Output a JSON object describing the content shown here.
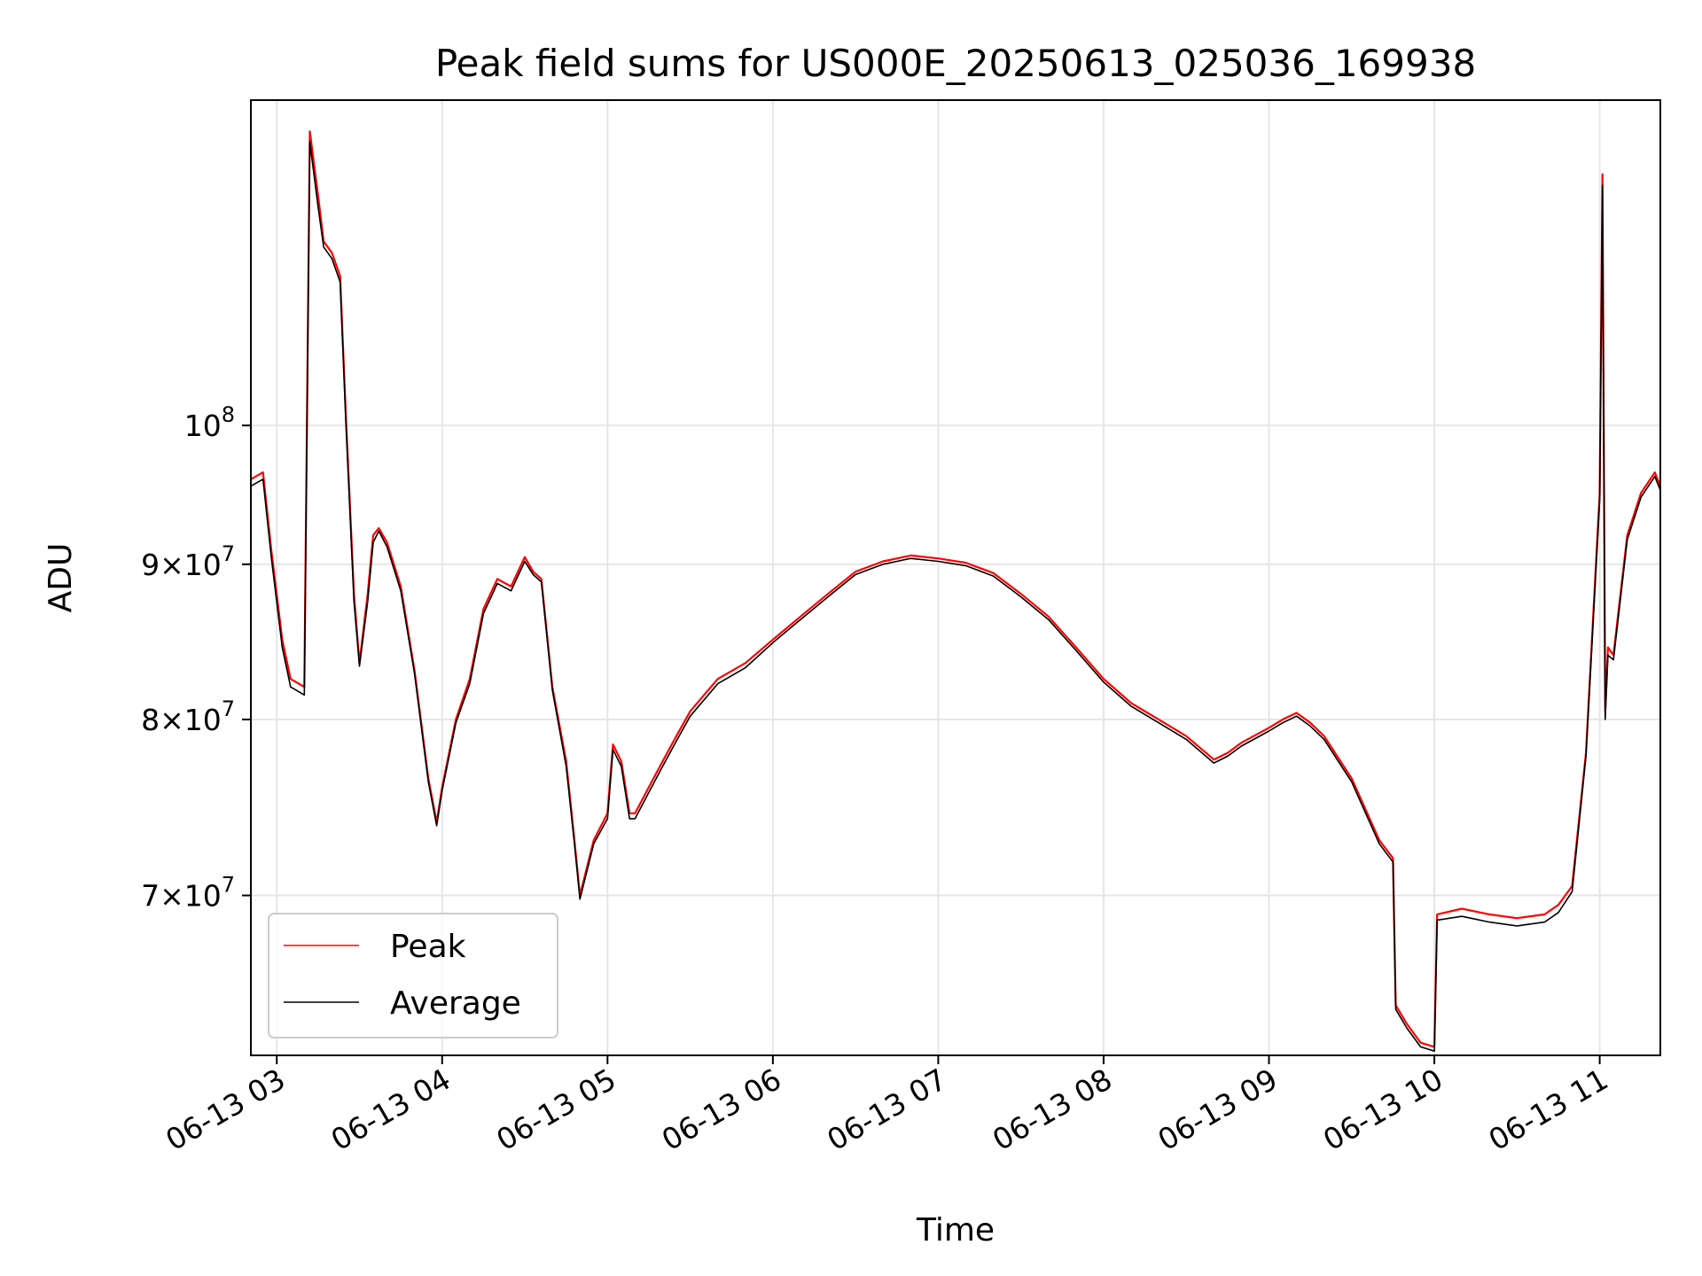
{
  "chart_data": {
    "type": "line",
    "title": "Peak field sums for US000E_20250613_025036_169938",
    "xlabel": "Time",
    "ylabel": "ADU",
    "x_axis": {
      "kind": "time",
      "range": [
        "2025-06-13 02:50:36",
        "2025-06-13 11:22:00"
      ],
      "ticks": [
        {
          "value": "2025-06-13 03:00",
          "label": "06-13 03"
        },
        {
          "value": "2025-06-13 04:00",
          "label": "06-13 04"
        },
        {
          "value": "2025-06-13 05:00",
          "label": "06-13 05"
        },
        {
          "value": "2025-06-13 06:00",
          "label": "06-13 06"
        },
        {
          "value": "2025-06-13 07:00",
          "label": "06-13 07"
        },
        {
          "value": "2025-06-13 08:00",
          "label": "06-13 08"
        },
        {
          "value": "2025-06-13 09:00",
          "label": "06-13 09"
        },
        {
          "value": "2025-06-13 10:00",
          "label": "06-13 10"
        },
        {
          "value": "2025-06-13 11:00",
          "label": "06-13 11"
        }
      ]
    },
    "y_axis": {
      "scale": "log",
      "range": [
        62000000,
        128000000
      ],
      "ticks": [
        {
          "value": 70000000,
          "mant": "7",
          "exp": "7"
        },
        {
          "value": 80000000,
          "mant": "8",
          "exp": "7"
        },
        {
          "value": 90000000,
          "mant": "9",
          "exp": "7"
        },
        {
          "value": 100000000,
          "mant": "",
          "exp": "8"
        }
      ]
    },
    "grid": true,
    "legend": {
      "position": "lower-left",
      "entries": [
        {
          "label": "Peak",
          "color": "#ff0000"
        },
        {
          "label": "Average",
          "color": "#000000"
        }
      ]
    },
    "series": [
      {
        "name": "Peak",
        "color": "#ff0000",
        "x": [
          "2025-06-13 02:50:36",
          "2025-06-13 02:55",
          "2025-06-13 02:58",
          "2025-06-13 03:02",
          "2025-06-13 03:05",
          "2025-06-13 03:10",
          "2025-06-13 03:12",
          "2025-06-13 03:15",
          "2025-06-13 03:17",
          "2025-06-13 03:20",
          "2025-06-13 03:23",
          "2025-06-13 03:25",
          "2025-06-13 03:28",
          "2025-06-13 03:30",
          "2025-06-13 03:33",
          "2025-06-13 03:35",
          "2025-06-13 03:37",
          "2025-06-13 03:40",
          "2025-06-13 03:45",
          "2025-06-13 03:50",
          "2025-06-13 03:55",
          "2025-06-13 03:58",
          "2025-06-13 04:00",
          "2025-06-13 04:05",
          "2025-06-13 04:10",
          "2025-06-13 04:15",
          "2025-06-13 04:20",
          "2025-06-13 04:25",
          "2025-06-13 04:30",
          "2025-06-13 04:33",
          "2025-06-13 04:36",
          "2025-06-13 04:40",
          "2025-06-13 04:45",
          "2025-06-13 04:48",
          "2025-06-13 04:50",
          "2025-06-13 04:55",
          "2025-06-13 05:00",
          "2025-06-13 05:02",
          "2025-06-13 05:05",
          "2025-06-13 05:08",
          "2025-06-13 05:10",
          "2025-06-13 05:15",
          "2025-06-13 05:20",
          "2025-06-13 05:25",
          "2025-06-13 05:30",
          "2025-06-13 05:40",
          "2025-06-13 05:50",
          "2025-06-13 06:00",
          "2025-06-13 06:10",
          "2025-06-13 06:20",
          "2025-06-13 06:30",
          "2025-06-13 06:40",
          "2025-06-13 06:50",
          "2025-06-13 07:00",
          "2025-06-13 07:10",
          "2025-06-13 07:20",
          "2025-06-13 07:30",
          "2025-06-13 07:40",
          "2025-06-13 07:50",
          "2025-06-13 08:00",
          "2025-06-13 08:10",
          "2025-06-13 08:20",
          "2025-06-13 08:30",
          "2025-06-13 08:40",
          "2025-06-13 08:45",
          "2025-06-13 08:50",
          "2025-06-13 09:00",
          "2025-06-13 09:05",
          "2025-06-13 09:10",
          "2025-06-13 09:15",
          "2025-06-13 09:20",
          "2025-06-13 09:30",
          "2025-06-13 09:40",
          "2025-06-13 09:45",
          "2025-06-13 09:46",
          "2025-06-13 09:50",
          "2025-06-13 09:55",
          "2025-06-13 10:00",
          "2025-06-13 10:01",
          "2025-06-13 10:10",
          "2025-06-13 10:20",
          "2025-06-13 10:30",
          "2025-06-13 10:40",
          "2025-06-13 10:45",
          "2025-06-13 10:50",
          "2025-06-13 10:55",
          "2025-06-13 11:00",
          "2025-06-13 11:01",
          "2025-06-13 11:02",
          "2025-06-13 11:03",
          "2025-06-13 11:05",
          "2025-06-13 11:10",
          "2025-06-13 11:15",
          "2025-06-13 11:20",
          "2025-06-13 11:22"
        ],
        "y": [
          96000000,
          96500000,
          91000000,
          85000000,
          82500000,
          82000000,
          125000000,
          119000000,
          115000000,
          114000000,
          112000000,
          101000000,
          88000000,
          83500000,
          88000000,
          92000000,
          92500000,
          91500000,
          88500000,
          83000000,
          76500000,
          74000000,
          76000000,
          80000000,
          82500000,
          87000000,
          89000000,
          88500000,
          90500000,
          89500000,
          89000000,
          82000000,
          77500000,
          73000000,
          70000000,
          73000000,
          74500000,
          78500000,
          77500000,
          74500000,
          74500000,
          76000000,
          77500000,
          79000000,
          80500000,
          82500000,
          83500000,
          85000000,
          86500000,
          88000000,
          89500000,
          90200000,
          90600000,
          90400000,
          90100000,
          89400000,
          88000000,
          86500000,
          84500000,
          82500000,
          81000000,
          80000000,
          79000000,
          77600000,
          78000000,
          78600000,
          79500000,
          80000000,
          80400000,
          79800000,
          79000000,
          76500000,
          73000000,
          72000000,
          64400000,
          63500000,
          62600000,
          62400000,
          69000000,
          69300000,
          69000000,
          68800000,
          69000000,
          69500000,
          70500000,
          78000000,
          95000000,
          121000000,
          80500000,
          84500000,
          84000000,
          92000000,
          95000000,
          96500000,
          95500000
        ]
      },
      {
        "name": "Average",
        "color": "#000000",
        "x": [
          "2025-06-13 02:50:36",
          "2025-06-13 02:55",
          "2025-06-13 02:58",
          "2025-06-13 03:02",
          "2025-06-13 03:05",
          "2025-06-13 03:10",
          "2025-06-13 03:12",
          "2025-06-13 03:15",
          "2025-06-13 03:17",
          "2025-06-13 03:20",
          "2025-06-13 03:23",
          "2025-06-13 03:25",
          "2025-06-13 03:28",
          "2025-06-13 03:30",
          "2025-06-13 03:33",
          "2025-06-13 03:35",
          "2025-06-13 03:37",
          "2025-06-13 03:40",
          "2025-06-13 03:45",
          "2025-06-13 03:50",
          "2025-06-13 03:55",
          "2025-06-13 03:58",
          "2025-06-13 04:00",
          "2025-06-13 04:05",
          "2025-06-13 04:10",
          "2025-06-13 04:15",
          "2025-06-13 04:20",
          "2025-06-13 04:25",
          "2025-06-13 04:30",
          "2025-06-13 04:33",
          "2025-06-13 04:36",
          "2025-06-13 04:40",
          "2025-06-13 04:45",
          "2025-06-13 04:48",
          "2025-06-13 04:50",
          "2025-06-13 04:55",
          "2025-06-13 05:00",
          "2025-06-13 05:02",
          "2025-06-13 05:05",
          "2025-06-13 05:08",
          "2025-06-13 05:10",
          "2025-06-13 05:15",
          "2025-06-13 05:20",
          "2025-06-13 05:25",
          "2025-06-13 05:30",
          "2025-06-13 05:40",
          "2025-06-13 05:50",
          "2025-06-13 06:00",
          "2025-06-13 06:10",
          "2025-06-13 06:20",
          "2025-06-13 06:30",
          "2025-06-13 06:40",
          "2025-06-13 06:50",
          "2025-06-13 07:00",
          "2025-06-13 07:10",
          "2025-06-13 07:20",
          "2025-06-13 07:30",
          "2025-06-13 07:40",
          "2025-06-13 07:50",
          "2025-06-13 08:00",
          "2025-06-13 08:10",
          "2025-06-13 08:20",
          "2025-06-13 08:30",
          "2025-06-13 08:40",
          "2025-06-13 08:45",
          "2025-06-13 08:50",
          "2025-06-13 09:00",
          "2025-06-13 09:05",
          "2025-06-13 09:10",
          "2025-06-13 09:15",
          "2025-06-13 09:20",
          "2025-06-13 09:30",
          "2025-06-13 09:40",
          "2025-06-13 09:45",
          "2025-06-13 09:46",
          "2025-06-13 09:50",
          "2025-06-13 09:55",
          "2025-06-13 10:00",
          "2025-06-13 10:01",
          "2025-06-13 10:10",
          "2025-06-13 10:20",
          "2025-06-13 10:30",
          "2025-06-13 10:40",
          "2025-06-13 10:45",
          "2025-06-13 10:50",
          "2025-06-13 10:55",
          "2025-06-13 11:00",
          "2025-06-13 11:01",
          "2025-06-13 11:02",
          "2025-06-13 11:03",
          "2025-06-13 11:05",
          "2025-06-13 11:10",
          "2025-06-13 11:15",
          "2025-06-13 11:20",
          "2025-06-13 11:22"
        ],
        "y": [
          95500000,
          96000000,
          90500000,
          84500000,
          82000000,
          81500000,
          124000000,
          118000000,
          114500000,
          113500000,
          111500000,
          100500000,
          87500000,
          83300000,
          87500000,
          91500000,
          92300000,
          91200000,
          88200000,
          82800000,
          76300000,
          73800000,
          75800000,
          79800000,
          82200000,
          86700000,
          88700000,
          88200000,
          90200000,
          89300000,
          88800000,
          81800000,
          77200000,
          72800000,
          69800000,
          72800000,
          74200000,
          78200000,
          77200000,
          74200000,
          74200000,
          75700000,
          77200000,
          78700000,
          80200000,
          82200000,
          83200000,
          84800000,
          86300000,
          87800000,
          89300000,
          90000000,
          90400000,
          90200000,
          89900000,
          89200000,
          87800000,
          86300000,
          84300000,
          82300000,
          80800000,
          79800000,
          78800000,
          77400000,
          77800000,
          78400000,
          79300000,
          79800000,
          80200000,
          79600000,
          78800000,
          76300000,
          72800000,
          71800000,
          64200000,
          63300000,
          62400000,
          62200000,
          68700000,
          68900000,
          68600000,
          68400000,
          68600000,
          69100000,
          70200000,
          77800000,
          94500000,
          120000000,
          80000000,
          84000000,
          83700000,
          91700000,
          94700000,
          96200000,
          95200000
        ]
      }
    ]
  }
}
